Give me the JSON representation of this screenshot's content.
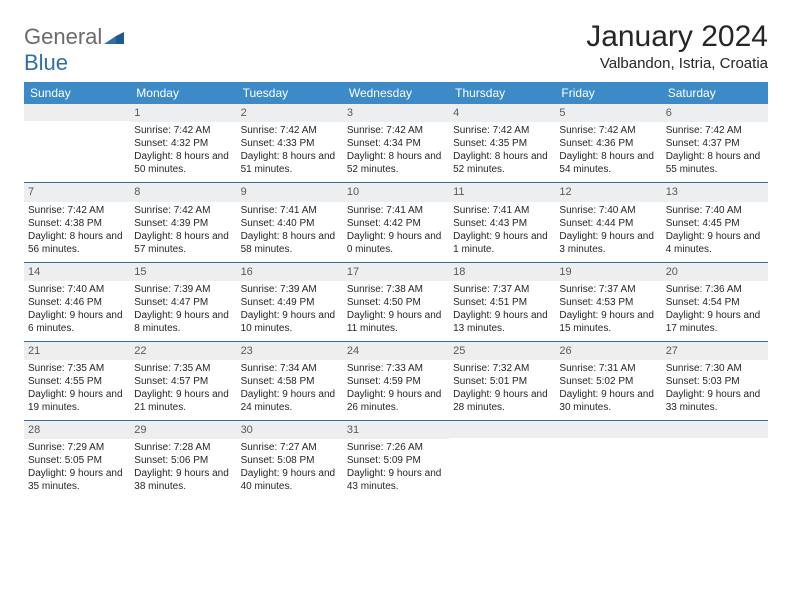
{
  "logo": {
    "general": "General",
    "blue": "Blue"
  },
  "title": "January 2024",
  "location": "Valbandon, Istria, Croatia",
  "colors": {
    "header_bg": "#3c8bc8",
    "daynum_bg": "#eceef0",
    "rule": "#2f6fa8",
    "logo_gray": "#6b6b6b",
    "logo_blue": "#2f6fa8"
  },
  "daysOfWeek": [
    "Sunday",
    "Monday",
    "Tuesday",
    "Wednesday",
    "Thursday",
    "Friday",
    "Saturday"
  ],
  "weeks": [
    [
      {
        "n": "",
        "sr": "",
        "ss": "",
        "dl": ""
      },
      {
        "n": "1",
        "sr": "Sunrise: 7:42 AM",
        "ss": "Sunset: 4:32 PM",
        "dl": "Daylight: 8 hours and 50 minutes."
      },
      {
        "n": "2",
        "sr": "Sunrise: 7:42 AM",
        "ss": "Sunset: 4:33 PM",
        "dl": "Daylight: 8 hours and 51 minutes."
      },
      {
        "n": "3",
        "sr": "Sunrise: 7:42 AM",
        "ss": "Sunset: 4:34 PM",
        "dl": "Daylight: 8 hours and 52 minutes."
      },
      {
        "n": "4",
        "sr": "Sunrise: 7:42 AM",
        "ss": "Sunset: 4:35 PM",
        "dl": "Daylight: 8 hours and 52 minutes."
      },
      {
        "n": "5",
        "sr": "Sunrise: 7:42 AM",
        "ss": "Sunset: 4:36 PM",
        "dl": "Daylight: 8 hours and 54 minutes."
      },
      {
        "n": "6",
        "sr": "Sunrise: 7:42 AM",
        "ss": "Sunset: 4:37 PM",
        "dl": "Daylight: 8 hours and 55 minutes."
      }
    ],
    [
      {
        "n": "7",
        "sr": "Sunrise: 7:42 AM",
        "ss": "Sunset: 4:38 PM",
        "dl": "Daylight: 8 hours and 56 minutes."
      },
      {
        "n": "8",
        "sr": "Sunrise: 7:42 AM",
        "ss": "Sunset: 4:39 PM",
        "dl": "Daylight: 8 hours and 57 minutes."
      },
      {
        "n": "9",
        "sr": "Sunrise: 7:41 AM",
        "ss": "Sunset: 4:40 PM",
        "dl": "Daylight: 8 hours and 58 minutes."
      },
      {
        "n": "10",
        "sr": "Sunrise: 7:41 AM",
        "ss": "Sunset: 4:42 PM",
        "dl": "Daylight: 9 hours and 0 minutes."
      },
      {
        "n": "11",
        "sr": "Sunrise: 7:41 AM",
        "ss": "Sunset: 4:43 PM",
        "dl": "Daylight: 9 hours and 1 minute."
      },
      {
        "n": "12",
        "sr": "Sunrise: 7:40 AM",
        "ss": "Sunset: 4:44 PM",
        "dl": "Daylight: 9 hours and 3 minutes."
      },
      {
        "n": "13",
        "sr": "Sunrise: 7:40 AM",
        "ss": "Sunset: 4:45 PM",
        "dl": "Daylight: 9 hours and 4 minutes."
      }
    ],
    [
      {
        "n": "14",
        "sr": "Sunrise: 7:40 AM",
        "ss": "Sunset: 4:46 PM",
        "dl": "Daylight: 9 hours and 6 minutes."
      },
      {
        "n": "15",
        "sr": "Sunrise: 7:39 AM",
        "ss": "Sunset: 4:47 PM",
        "dl": "Daylight: 9 hours and 8 minutes."
      },
      {
        "n": "16",
        "sr": "Sunrise: 7:39 AM",
        "ss": "Sunset: 4:49 PM",
        "dl": "Daylight: 9 hours and 10 minutes."
      },
      {
        "n": "17",
        "sr": "Sunrise: 7:38 AM",
        "ss": "Sunset: 4:50 PM",
        "dl": "Daylight: 9 hours and 11 minutes."
      },
      {
        "n": "18",
        "sr": "Sunrise: 7:37 AM",
        "ss": "Sunset: 4:51 PM",
        "dl": "Daylight: 9 hours and 13 minutes."
      },
      {
        "n": "19",
        "sr": "Sunrise: 7:37 AM",
        "ss": "Sunset: 4:53 PM",
        "dl": "Daylight: 9 hours and 15 minutes."
      },
      {
        "n": "20",
        "sr": "Sunrise: 7:36 AM",
        "ss": "Sunset: 4:54 PM",
        "dl": "Daylight: 9 hours and 17 minutes."
      }
    ],
    [
      {
        "n": "21",
        "sr": "Sunrise: 7:35 AM",
        "ss": "Sunset: 4:55 PM",
        "dl": "Daylight: 9 hours and 19 minutes."
      },
      {
        "n": "22",
        "sr": "Sunrise: 7:35 AM",
        "ss": "Sunset: 4:57 PM",
        "dl": "Daylight: 9 hours and 21 minutes."
      },
      {
        "n": "23",
        "sr": "Sunrise: 7:34 AM",
        "ss": "Sunset: 4:58 PM",
        "dl": "Daylight: 9 hours and 24 minutes."
      },
      {
        "n": "24",
        "sr": "Sunrise: 7:33 AM",
        "ss": "Sunset: 4:59 PM",
        "dl": "Daylight: 9 hours and 26 minutes."
      },
      {
        "n": "25",
        "sr": "Sunrise: 7:32 AM",
        "ss": "Sunset: 5:01 PM",
        "dl": "Daylight: 9 hours and 28 minutes."
      },
      {
        "n": "26",
        "sr": "Sunrise: 7:31 AM",
        "ss": "Sunset: 5:02 PM",
        "dl": "Daylight: 9 hours and 30 minutes."
      },
      {
        "n": "27",
        "sr": "Sunrise: 7:30 AM",
        "ss": "Sunset: 5:03 PM",
        "dl": "Daylight: 9 hours and 33 minutes."
      }
    ],
    [
      {
        "n": "28",
        "sr": "Sunrise: 7:29 AM",
        "ss": "Sunset: 5:05 PM",
        "dl": "Daylight: 9 hours and 35 minutes."
      },
      {
        "n": "29",
        "sr": "Sunrise: 7:28 AM",
        "ss": "Sunset: 5:06 PM",
        "dl": "Daylight: 9 hours and 38 minutes."
      },
      {
        "n": "30",
        "sr": "Sunrise: 7:27 AM",
        "ss": "Sunset: 5:08 PM",
        "dl": "Daylight: 9 hours and 40 minutes."
      },
      {
        "n": "31",
        "sr": "Sunrise: 7:26 AM",
        "ss": "Sunset: 5:09 PM",
        "dl": "Daylight: 9 hours and 43 minutes."
      },
      {
        "n": "",
        "sr": "",
        "ss": "",
        "dl": ""
      },
      {
        "n": "",
        "sr": "",
        "ss": "",
        "dl": ""
      },
      {
        "n": "",
        "sr": "",
        "ss": "",
        "dl": ""
      }
    ]
  ]
}
